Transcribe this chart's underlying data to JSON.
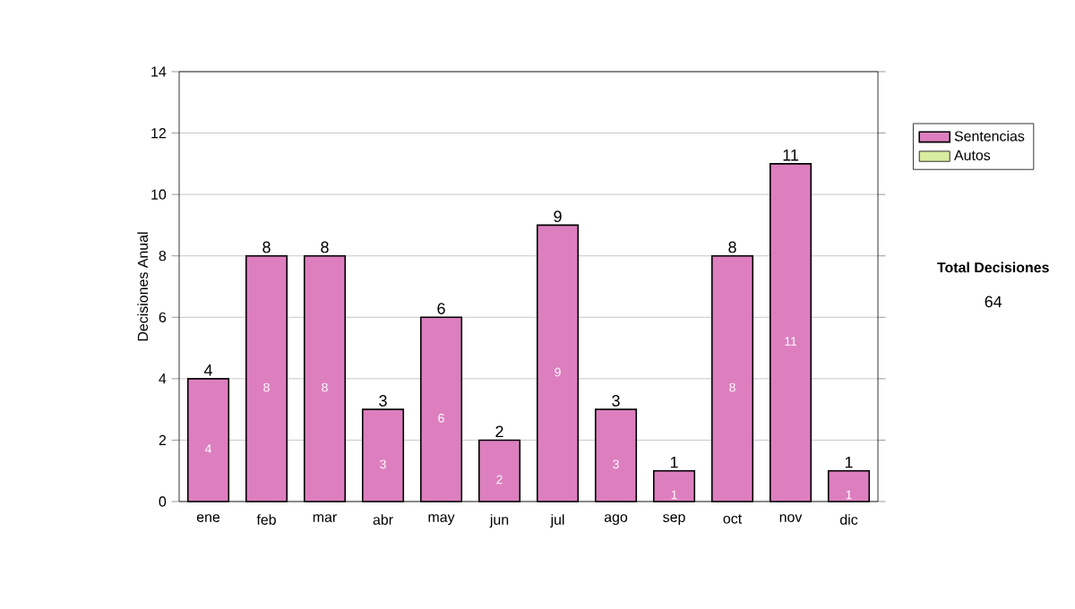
{
  "chart_data": {
    "type": "bar",
    "stacked": true,
    "ylabel": "Decisiones Anual",
    "categories": [
      "ene",
      "feb",
      "mar",
      "abr",
      "may",
      "jun",
      "jul",
      "ago",
      "sep",
      "oct",
      "nov",
      "dic"
    ],
    "series": [
      {
        "name": "Sentencias",
        "color": "#dd7fbf",
        "values": [
          4,
          8,
          8,
          3,
          6,
          2,
          9,
          3,
          1,
          8,
          11,
          1
        ]
      },
      {
        "name": "Autos",
        "color": "#d9eda0",
        "values": [
          null,
          null,
          null,
          null,
          null,
          null,
          null,
          null,
          null,
          null,
          null,
          null
        ]
      }
    ],
    "ylim": [
      0,
      14
    ],
    "yticks": [
      0,
      2,
      4,
      6,
      8,
      10,
      12,
      14
    ],
    "grid": "y",
    "legend": "right",
    "data_labels": true,
    "totals": [
      "4",
      "8",
      "8",
      "3",
      "6",
      "2",
      "9",
      "3",
      "1",
      "8",
      "11",
      "1"
    ],
    "annotations": [
      "**Total Decisiones**",
      "64"
    ]
  }
}
